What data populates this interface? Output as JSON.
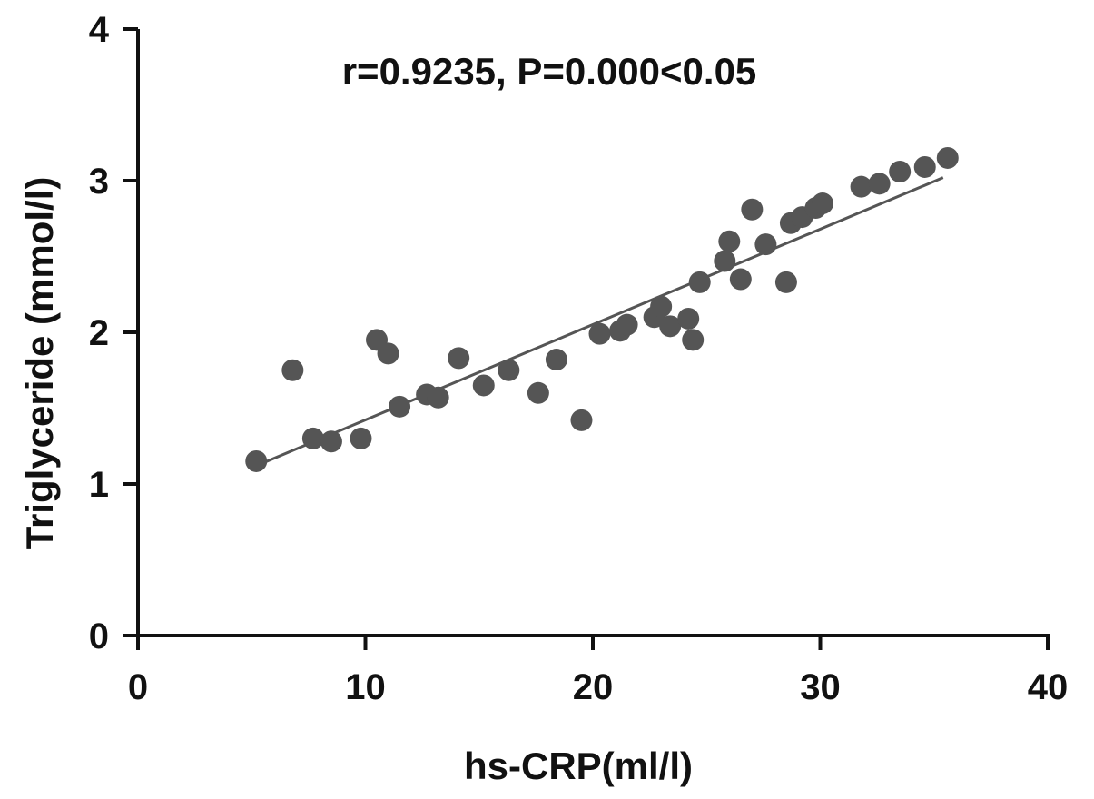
{
  "chart_data": {
    "type": "scatter",
    "xlabel": "hs-CRP(ml/l)",
    "ylabel": "Triglyceride (mmol/l)",
    "annotation": "r=0.9235, P=0.000<0.05",
    "xlim": [
      0,
      40
    ],
    "ylim": [
      0,
      4
    ],
    "xticks": [
      "0",
      "10",
      "20",
      "30",
      "40"
    ],
    "yticks": [
      "0",
      "1",
      "2",
      "3",
      "4"
    ],
    "grid": false,
    "legend": "none",
    "colors": {
      "points": "#555555",
      "trendline": "#555555",
      "axes": "#111111"
    },
    "points": [
      {
        "x": 5.2,
        "y": 1.15
      },
      {
        "x": 6.8,
        "y": 1.75
      },
      {
        "x": 7.7,
        "y": 1.3
      },
      {
        "x": 8.5,
        "y": 1.28
      },
      {
        "x": 9.8,
        "y": 1.3
      },
      {
        "x": 10.5,
        "y": 1.95
      },
      {
        "x": 11.0,
        "y": 1.86
      },
      {
        "x": 11.5,
        "y": 1.51
      },
      {
        "x": 12.7,
        "y": 1.59
      },
      {
        "x": 13.2,
        "y": 1.57
      },
      {
        "x": 14.1,
        "y": 1.83
      },
      {
        "x": 15.2,
        "y": 1.65
      },
      {
        "x": 16.3,
        "y": 1.75
      },
      {
        "x": 17.6,
        "y": 1.6
      },
      {
        "x": 18.4,
        "y": 1.82
      },
      {
        "x": 19.5,
        "y": 1.42
      },
      {
        "x": 20.3,
        "y": 1.99
      },
      {
        "x": 21.2,
        "y": 2.01
      },
      {
        "x": 21.5,
        "y": 2.05
      },
      {
        "x": 22.7,
        "y": 2.1
      },
      {
        "x": 23.0,
        "y": 2.17
      },
      {
        "x": 23.4,
        "y": 2.04
      },
      {
        "x": 24.2,
        "y": 2.09
      },
      {
        "x": 24.4,
        "y": 1.95
      },
      {
        "x": 24.7,
        "y": 2.33
      },
      {
        "x": 25.8,
        "y": 2.47
      },
      {
        "x": 26.0,
        "y": 2.6
      },
      {
        "x": 26.5,
        "y": 2.35
      },
      {
        "x": 27.0,
        "y": 2.81
      },
      {
        "x": 27.6,
        "y": 2.58
      },
      {
        "x": 28.5,
        "y": 2.33
      },
      {
        "x": 28.7,
        "y": 2.72
      },
      {
        "x": 29.2,
        "y": 2.76
      },
      {
        "x": 29.8,
        "y": 2.82
      },
      {
        "x": 30.1,
        "y": 2.85
      },
      {
        "x": 31.8,
        "y": 2.96
      },
      {
        "x": 32.6,
        "y": 2.98
      },
      {
        "x": 33.5,
        "y": 3.06
      },
      {
        "x": 34.6,
        "y": 3.09
      },
      {
        "x": 35.6,
        "y": 3.15
      }
    ],
    "trendline": {
      "x": [
        5.2,
        35.4
      ],
      "y": [
        1.12,
        3.02
      ]
    }
  }
}
